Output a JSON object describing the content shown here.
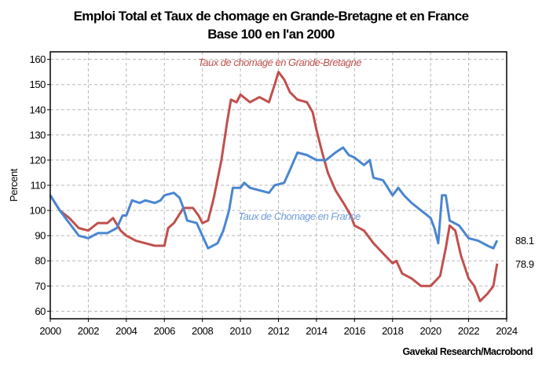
{
  "chart_data": {
    "type": "line",
    "title": "Emploi Total et Taux de chomage en Grande-Bretagne et en France",
    "subtitle": "Base 100 en l'an 2000",
    "xlabel": "",
    "ylabel": "Percent",
    "xlim": [
      2000,
      2024
    ],
    "ylim": [
      57,
      163
    ],
    "xticks": [
      2000,
      2002,
      2004,
      2006,
      2008,
      2010,
      2012,
      2014,
      2016,
      2018,
      2020,
      2022,
      2024
    ],
    "yticks": [
      60,
      70,
      80,
      90,
      100,
      110,
      120,
      130,
      140,
      150,
      160
    ],
    "grid": true,
    "source": "Gavekal Research/Macrobond",
    "series": [
      {
        "name": "Taux de chomage en Grande-Bretagne",
        "color": "#c0504d",
        "last_label": "78.9",
        "last_label_color": "#c00020",
        "x": [
          2000,
          2000.5,
          2001,
          2001.5,
          2002,
          2002.5,
          2003,
          2003.3,
          2003.7,
          2004,
          2004.5,
          2005,
          2005.5,
          2006,
          2006.2,
          2006.5,
          2007,
          2007.5,
          2007.8,
          2008,
          2008.3,
          2008.6,
          2009,
          2009.3,
          2009.5,
          2009.8,
          2010,
          2010.5,
          2011,
          2011.5,
          2011.8,
          2012,
          2012.3,
          2012.6,
          2013,
          2013.5,
          2013.8,
          2014,
          2014.3,
          2014.6,
          2015,
          2015.5,
          2015.8,
          2016,
          2016.5,
          2017,
          2017.5,
          2018,
          2018.2,
          2018.5,
          2019,
          2019.5,
          2020,
          2020.5,
          2020.8,
          2021,
          2021.3,
          2021.6,
          2022,
          2022.3,
          2022.6,
          2023,
          2023.3,
          2023.5
        ],
        "y": [
          106,
          100,
          97,
          93,
          92,
          95,
          95,
          97,
          92,
          90,
          88,
          87,
          86,
          86,
          93,
          95,
          101,
          101,
          98,
          95,
          96,
          105,
          120,
          135,
          144,
          143,
          146,
          143,
          145,
          143,
          150,
          155,
          152,
          147,
          144,
          143,
          139,
          132,
          123,
          115,
          108,
          102,
          98,
          94,
          92,
          87,
          83,
          79,
          80,
          75,
          73,
          70,
          70,
          74,
          85,
          94,
          92,
          82,
          73,
          70,
          64,
          67,
          70,
          78.9
        ]
      },
      {
        "name": "Taux de Chomage en France",
        "color": "#4a86d0",
        "last_label": "88.1",
        "last_label_color": "#7ba3d8",
        "x": [
          2000,
          2000.5,
          2001,
          2001.5,
          2002,
          2002.5,
          2003,
          2003.5,
          2003.8,
          2004,
          2004.3,
          2004.7,
          2005,
          2005.5,
          2005.8,
          2006,
          2006.5,
          2006.8,
          2007,
          2007.2,
          2007.7,
          2008,
          2008.3,
          2008.8,
          2009.1,
          2009.4,
          2009.6,
          2010,
          2010.2,
          2010.5,
          2011,
          2011.5,
          2011.8,
          2012.3,
          2012.6,
          2013,
          2013.5,
          2014,
          2014.5,
          2015,
          2015.4,
          2015.7,
          2016,
          2016.5,
          2016.8,
          2017,
          2017.5,
          2018,
          2018.3,
          2018.6,
          2019,
          2019.5,
          2020,
          2020.2,
          2020.4,
          2020.6,
          2020.8,
          2021,
          2021.5,
          2022,
          2022.5,
          2023,
          2023.3,
          2023.5
        ],
        "y": [
          106,
          100,
          95,
          90,
          89,
          91,
          91,
          93,
          98,
          98,
          104,
          103,
          104,
          103,
          104,
          106,
          107,
          105,
          101,
          96,
          95,
          90,
          85,
          87,
          92,
          100,
          109,
          109,
          111,
          109,
          108,
          107,
          110,
          111,
          116,
          123,
          122,
          120,
          120,
          123,
          125,
          122,
          121,
          118,
          120,
          113,
          112,
          106,
          109,
          106,
          103,
          100,
          97,
          93,
          87,
          106,
          106,
          96,
          94,
          89,
          88,
          86,
          85,
          88.1
        ]
      }
    ]
  }
}
